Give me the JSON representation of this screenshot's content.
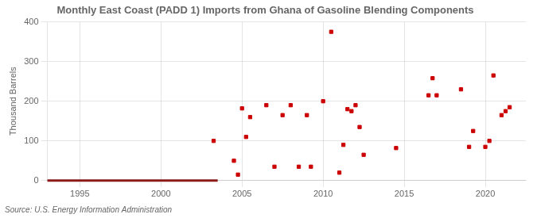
{
  "chart_data": {
    "type": "scatter",
    "title": "Monthly East Coast (PADD 1) Imports from Ghana of Gasoline Blending Components",
    "ylabel": "Thousand Barrels",
    "annotations": [
      "Source: U.S. Energy Information Administration"
    ],
    "xlim": [
      1993,
      2022.5
    ],
    "ylim": [
      0,
      400
    ],
    "xticks": [
      1995,
      2000,
      2005,
      2010,
      2015,
      2020
    ],
    "yticks": [
      0,
      100,
      200,
      300,
      400
    ],
    "grid": true,
    "series": [
      {
        "type": "line",
        "color": "#8b1a1a",
        "line_style": "solid",
        "x": [
          1993,
          2003.5
        ],
        "values": [
          0,
          0
        ]
      },
      {
        "type": "scatter",
        "color": "#cc0000",
        "marker": "square",
        "x": [
          2003.25,
          2004.5,
          2004.75,
          2005.0,
          2005.25,
          2005.5,
          2006.5,
          2007.0,
          2007.5,
          2008.0,
          2008.5,
          2009.0,
          2009.25,
          2010.0,
          2010.5,
          2011.0,
          2011.25,
          2011.5,
          2011.75,
          2012.0,
          2012.25,
          2012.5,
          2014.5,
          2016.5,
          2016.75,
          2017.0,
          2018.5,
          2019.0,
          2019.25,
          2020.0,
          2020.25,
          2020.5,
          2021.0,
          2021.25,
          2021.5
        ],
        "values": [
          100,
          50,
          15,
          182,
          110,
          160,
          190,
          35,
          165,
          190,
          35,
          165,
          35,
          200,
          375,
          20,
          90,
          180,
          175,
          190,
          135,
          65,
          82,
          215,
          258,
          215,
          230,
          85,
          125,
          85,
          100,
          265,
          165,
          175,
          185
        ]
      }
    ]
  }
}
